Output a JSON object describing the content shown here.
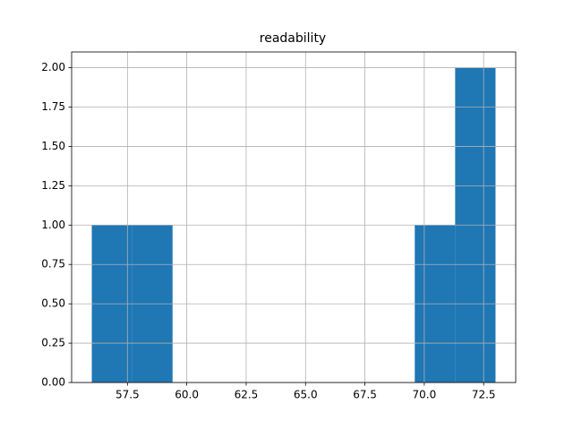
{
  "chart_data": {
    "type": "histogram",
    "title": "readability",
    "bins": [
      56.0,
      57.7,
      59.4,
      61.1,
      62.8,
      64.5,
      66.2,
      67.9,
      69.6,
      71.3,
      73.0
    ],
    "values": [
      1,
      1,
      0,
      0,
      0,
      0,
      0,
      0,
      1,
      2
    ],
    "color": "#1f77b4",
    "xlim": [
      55.15,
      73.85
    ],
    "xticks": [
      57.5,
      {
        "value": 60,
        "label": "60.0"
      },
      62.5,
      {
        "value": 65,
        "label": "65.0"
      },
      67.5,
      {
        "value": 70,
        "label": "70.0"
      },
      72.5
    ],
    "ylim": [
      0,
      2.1
    ],
    "yticks": [
      {
        "value": 0,
        "label": "0.00"
      },
      {
        "value": 0.25,
        "label": "0.25"
      },
      {
        "value": 0.5,
        "label": "0.50"
      },
      {
        "value": 0.75,
        "label": "0.75"
      },
      {
        "value": 1,
        "label": "1.00"
      },
      {
        "value": 1.25,
        "label": "1.25"
      },
      {
        "value": 1.5,
        "label": "1.50"
      },
      {
        "value": 1.75,
        "label": "1.75"
      },
      {
        "value": 2,
        "label": "2.00"
      }
    ],
    "grid": true
  }
}
